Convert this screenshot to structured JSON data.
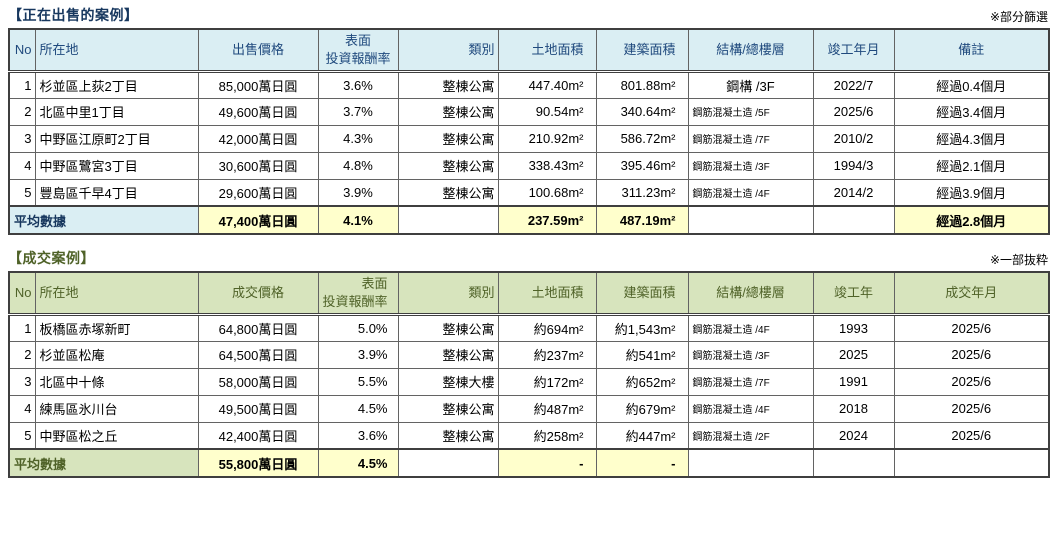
{
  "sale_section": {
    "title": "【正在出售的案例】",
    "note": "※部分篩選",
    "headers": [
      "No",
      "所在地",
      "出售價格",
      "表面\n投資報酬率",
      "類別",
      "土地面積",
      "建築面積",
      "結構/總樓層",
      "竣工年月",
      "備註"
    ],
    "rows": [
      [
        "1",
        "杉並區上荻2丁目",
        "85,000萬日圓",
        "3.6%",
        "整棟公寓",
        "447.40m²",
        "801.88m²",
        "鋼構 /3F",
        "2022/7",
        "經過0.4個月"
      ],
      [
        "2",
        "北區中里1丁目",
        "49,600萬日圓",
        "3.7%",
        "整棟公寓",
        "90.54m²",
        "340.64m²",
        "鋼筋混凝土造 /5F",
        "2025/6",
        "經過3.4個月"
      ],
      [
        "3",
        "中野區江原町2丁目",
        "42,000萬日圓",
        "4.3%",
        "整棟公寓",
        "210.92m²",
        "586.72m²",
        "鋼筋混凝土造 /7F",
        "2010/2",
        "經過4.3個月"
      ],
      [
        "4",
        "中野區鷺宮3丁目",
        "30,600萬日圓",
        "4.8%",
        "整棟公寓",
        "338.43m²",
        "395.46m²",
        "鋼筋混凝土造 /3F",
        "1994/3",
        "經過2.1個月"
      ],
      [
        "5",
        "豐島區千早4丁目",
        "29,600萬日圓",
        "3.9%",
        "整棟公寓",
        "100.68m²",
        "311.23m²",
        "鋼筋混凝土造 /4F",
        "2014/2",
        "經過3.9個月"
      ]
    ],
    "average": {
      "label": "平均數據",
      "values": [
        "47,400萬日圓",
        "4.1%",
        "",
        "237.59m²",
        "487.19m²",
        "",
        "",
        "經過2.8個月"
      ]
    },
    "colors": {
      "header_bg": "#daeef3",
      "title_text": "#17375e",
      "highlight_bg": "#ffffcc"
    }
  },
  "sold_section": {
    "title": "【成交案例】",
    "note": "※一部抜粋",
    "headers": [
      "No",
      "所在地",
      "成交價格",
      "表面\n投資報酬率",
      "類別",
      "土地面積",
      "建築面積",
      "結構/總樓層",
      "竣工年",
      "成交年月"
    ],
    "rows": [
      [
        "1",
        "板橋區赤塚新町",
        "64,800萬日圓",
        "5.0%",
        "整棟公寓",
        "約694m²",
        "約1,543m²",
        "鋼筋混凝土造 /4F",
        "1993",
        "2025/6"
      ],
      [
        "2",
        "杉並區松庵",
        "64,500萬日圓",
        "3.9%",
        "整棟公寓",
        "約237m²",
        "約541m²",
        "鋼筋混凝土造 /3F",
        "2025",
        "2025/6"
      ],
      [
        "3",
        "北區中十條",
        "58,000萬日圓",
        "5.5%",
        "整棟大樓",
        "約172m²",
        "約652m²",
        "鋼筋混凝土造 /7F",
        "1991",
        "2025/6"
      ],
      [
        "4",
        "練馬區氷川台",
        "49,500萬日圓",
        "4.5%",
        "整棟公寓",
        "約487m²",
        "約679m²",
        "鋼筋混凝土造 /4F",
        "2018",
        "2025/6"
      ],
      [
        "5",
        "中野區松之丘",
        "42,400萬日圓",
        "3.6%",
        "整棟公寓",
        "約258m²",
        "約447m²",
        "鋼筋混凝土造 /2F",
        "2024",
        "2025/6"
      ]
    ],
    "average": {
      "label": "平均數據",
      "values": [
        "55,800萬日圓",
        "4.5%",
        "",
        "-",
        "-",
        "",
        "",
        ""
      ]
    },
    "colors": {
      "header_bg": "#d7e4bd",
      "title_text": "#4f6228",
      "highlight_bg": "#ffffcc"
    }
  }
}
